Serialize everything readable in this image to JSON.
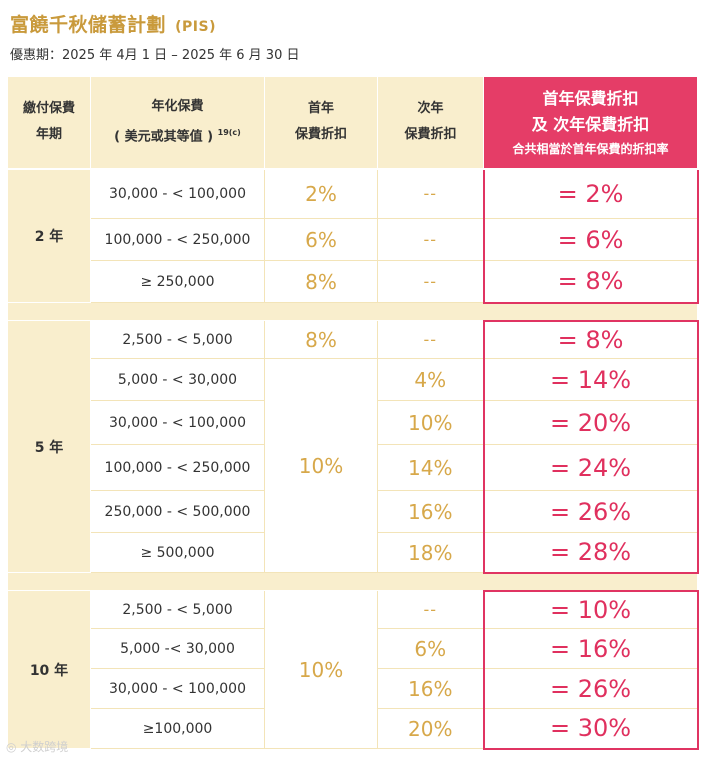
{
  "title": "富饒千秋儲蓄計劃",
  "title_code": "(PIS)",
  "period": "優惠期：2025 年 4月 1 日 – 2025 年 6 月 30 日",
  "headers": {
    "term_l1": "繳付保費",
    "term_l2": "年期",
    "premium_l1": "年化保費",
    "premium_l2": "( 美元或其等值 )",
    "premium_sup": "19(c)",
    "first_l1": "首年",
    "first_l2": "保費折扣",
    "second_l1": "次年",
    "second_l2": "保費折扣",
    "combined_l1": "首年保費折扣",
    "combined_l2": "及 次年保費折扣",
    "combined_l3": "合共相當於首年保費的折扣率"
  },
  "groups": [
    {
      "term": "2 年",
      "rows": [
        {
          "amount": "30,000 - < 100,000",
          "first": "2%",
          "second": "--",
          "total": "= 2%"
        },
        {
          "amount": "100,000 - < 250,000",
          "first": "6%",
          "second": "--",
          "total": "= 6%"
        },
        {
          "amount": "≥ 250,000",
          "first": "8%",
          "second": "--",
          "total": "= 8%"
        }
      ]
    },
    {
      "term": "5 年",
      "first_merged": "10%",
      "rows": [
        {
          "amount": "2,500 - < 5,000",
          "first": "8%",
          "second": "--",
          "total": "= 8%"
        },
        {
          "amount": "5,000 - < 30,000",
          "second": "4%",
          "total": "= 14%"
        },
        {
          "amount": "30,000 - < 100,000",
          "second": "10%",
          "total": "= 20%"
        },
        {
          "amount": "100,000 - < 250,000",
          "second": "14%",
          "total": "= 24%"
        },
        {
          "amount": "250,000 - < 500,000",
          "second": "16%",
          "total": "= 26%"
        },
        {
          "amount": "≥ 500,000",
          "second": "18%",
          "total": "= 28%"
        }
      ]
    },
    {
      "term": "10 年",
      "first_merged": "10%",
      "rows": [
        {
          "amount": "2,500 - < 5,000",
          "second": "--",
          "total": "= 10%"
        },
        {
          "amount": "5,000 -< 30,000",
          "second": "6%",
          "total": "= 16%"
        },
        {
          "amount": "30,000 - < 100,000",
          "second": "16%",
          "total": "= 26%"
        },
        {
          "amount": "≥100,000",
          "second": "20%",
          "total": "= 30%"
        }
      ]
    }
  ],
  "watermark": "大数跨境",
  "colors": {
    "gold": "#d7a84a",
    "pink": "#e53d67",
    "beige": "#f9eecd"
  }
}
